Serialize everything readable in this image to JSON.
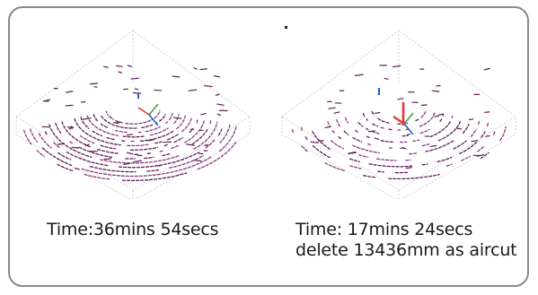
{
  "colors": {
    "outline": "#cfcfcf",
    "cut_path": "#8a3a7a",
    "cut_path_dark": "#5b1e55",
    "axis_x": "#e53935",
    "axis_y": "#43a047",
    "axis_z": "#1e5fd8",
    "frame_border": "#8a8a8a"
  },
  "left_job": {
    "time_label": "Time:36mins 54secs"
  },
  "right_job": {
    "time_label": "Time: 17mins 24secs",
    "aircut_label": "delete 13436mm as aircut"
  }
}
